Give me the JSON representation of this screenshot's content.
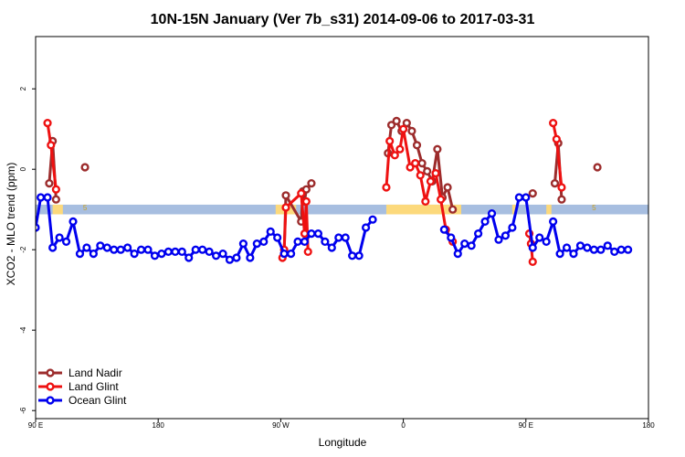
{
  "chart_data": {
    "type": "line",
    "title": "10N-15N January (Ver 7b_s31)   2014-09-06 to 2017-03-31",
    "xlabel": "Longitude",
    "ylabel": "XCO2 - MLO trend (ppm)",
    "xlim": [
      -90,
      270
    ],
    "ylim": [
      -6.2,
      3.3
    ],
    "x_ticks": [
      {
        "value": -90,
        "label": "90 E"
      },
      {
        "value": -18,
        "label": "180"
      },
      {
        "value": 54,
        "label": "90 W"
      },
      {
        "value": 126,
        "label": "0"
      },
      {
        "value": 198,
        "label": "90 E"
      },
      {
        "value": 270,
        "label": "180"
      }
    ],
    "y_ticks": [
      {
        "value": 2,
        "label": "2"
      },
      {
        "value": 0,
        "label": "0"
      },
      {
        "value": -2,
        "label": "-2"
      },
      {
        "value": -4,
        "label": "-4"
      },
      {
        "value": -6,
        "label": "-6"
      }
    ],
    "band": {
      "y_min": -1.12,
      "y_max": -0.88,
      "color": "#a7bee0"
    },
    "land_highlights": {
      "color": "#fcd97c",
      "ranges": [
        [
          -80,
          -74
        ],
        [
          51,
          63
        ],
        [
          116,
          160
        ],
        [
          190,
          192
        ],
        [
          210,
          213
        ]
      ]
    },
    "legend_position": "bottom-left",
    "series": [
      {
        "name": "Land Nadir",
        "color": "#9c2c2c",
        "points": [
          [
            -82,
            -0.35
          ],
          [
            -80,
            0.7
          ],
          [
            -78,
            -0.75
          ],
          [
            -61,
            0.05
          ],
          [
            56,
            -2.1
          ],
          [
            57,
            -0.65
          ],
          [
            66,
            -1.3
          ],
          [
            67,
            -0.55
          ],
          [
            68,
            -0.8
          ],
          [
            69,
            -0.5
          ],
          [
            72,
            -0.35
          ],
          [
            117,
            0.4
          ],
          [
            119,
            1.1
          ],
          [
            122,
            1.2
          ],
          [
            125,
            0.95
          ],
          [
            128,
            1.15
          ],
          [
            131,
            0.95
          ],
          [
            134,
            0.6
          ],
          [
            137,
            0.15
          ],
          [
            140,
            -0.05
          ],
          [
            143,
            -0.3
          ],
          [
            146,
            0.5
          ],
          [
            149,
            -0.7
          ],
          [
            152,
            -0.45
          ],
          [
            155,
            -1.0
          ],
          [
            202,
            -0.6
          ],
          [
            215,
            -0.35
          ],
          [
            217,
            0.65
          ],
          [
            219,
            -0.75
          ],
          [
            240,
            0.05
          ]
        ]
      },
      {
        "name": "Land Glint",
        "color": "#ee1111",
        "points": [
          [
            -83,
            1.15
          ],
          [
            -81,
            0.6
          ],
          [
            -78,
            -0.5
          ],
          [
            55,
            -2.2
          ],
          [
            56,
            -2.0
          ],
          [
            57,
            -0.95
          ],
          [
            66,
            -0.6
          ],
          [
            68,
            -1.6
          ],
          [
            69,
            -0.8
          ],
          [
            70,
            -2.05
          ],
          [
            116,
            -0.45
          ],
          [
            118,
            0.7
          ],
          [
            121,
            0.35
          ],
          [
            124,
            0.5
          ],
          [
            126,
            1.0
          ],
          [
            130,
            0.05
          ],
          [
            133,
            0.15
          ],
          [
            136,
            -0.15
          ],
          [
            139,
            -0.8
          ],
          [
            142,
            -0.3
          ],
          [
            145,
            -0.1
          ],
          [
            148,
            -0.75
          ],
          [
            151,
            -1.5
          ],
          [
            155,
            -1.8
          ],
          [
            200,
            -1.6
          ],
          [
            201,
            -1.85
          ],
          [
            202,
            -2.3
          ],
          [
            214,
            1.15
          ],
          [
            216,
            0.75
          ],
          [
            219,
            -0.45
          ]
        ]
      },
      {
        "name": "Ocean Glint",
        "color": "#0000ee",
        "points": [
          [
            -90,
            -1.45
          ],
          [
            -87,
            -0.7
          ],
          [
            -83,
            -0.7
          ],
          [
            -80,
            -1.95
          ],
          [
            -76,
            -1.7
          ],
          [
            -72,
            -1.8
          ],
          [
            -68,
            -1.3
          ],
          [
            -64,
            -2.1
          ],
          [
            -60,
            -1.95
          ],
          [
            -56,
            -2.1
          ],
          [
            -52,
            -1.9
          ],
          [
            -48,
            -1.95
          ],
          [
            -44,
            -2.0
          ],
          [
            -40,
            -2.0
          ],
          [
            -36,
            -1.95
          ],
          [
            -32,
            -2.1
          ],
          [
            -28,
            -2.0
          ],
          [
            -24,
            -2.0
          ],
          [
            -20,
            -2.15
          ],
          [
            -16,
            -2.1
          ],
          [
            -12,
            -2.05
          ],
          [
            -8,
            -2.05
          ],
          [
            -4,
            -2.05
          ],
          [
            0,
            -2.2
          ],
          [
            4,
            -2.0
          ],
          [
            8,
            -2.0
          ],
          [
            12,
            -2.05
          ],
          [
            16,
            -2.15
          ],
          [
            20,
            -2.1
          ],
          [
            24,
            -2.25
          ],
          [
            28,
            -2.2
          ],
          [
            32,
            -1.85
          ],
          [
            36,
            -2.2
          ],
          [
            40,
            -1.85
          ],
          [
            44,
            -1.8
          ],
          [
            48,
            -1.55
          ],
          [
            52,
            -1.7
          ],
          [
            56,
            -2.1
          ],
          [
            60,
            -2.1
          ],
          [
            64,
            -1.8
          ],
          [
            68,
            -1.8
          ],
          [
            72,
            -1.6
          ],
          [
            76,
            -1.6
          ],
          [
            80,
            -1.8
          ],
          [
            84,
            -1.95
          ],
          [
            88,
            -1.7
          ],
          [
            92,
            -1.7
          ],
          [
            96,
            -2.15
          ],
          [
            100,
            -2.15
          ],
          [
            104,
            -1.45
          ],
          [
            108,
            -1.25
          ],
          [
            150,
            -1.5
          ],
          [
            154,
            -1.7
          ],
          [
            158,
            -2.1
          ],
          [
            162,
            -1.85
          ],
          [
            166,
            -1.9
          ],
          [
            170,
            -1.6
          ],
          [
            174,
            -1.3
          ],
          [
            178,
            -1.1
          ],
          [
            182,
            -1.75
          ],
          [
            186,
            -1.65
          ],
          [
            190,
            -1.45
          ],
          [
            194,
            -0.7
          ],
          [
            198,
            -0.7
          ],
          [
            202,
            -1.95
          ],
          [
            206,
            -1.7
          ],
          [
            210,
            -1.8
          ],
          [
            214,
            -1.3
          ],
          [
            218,
            -2.1
          ],
          [
            222,
            -1.95
          ],
          [
            226,
            -2.1
          ],
          [
            230,
            -1.9
          ],
          [
            234,
            -1.95
          ],
          [
            238,
            -2.0
          ],
          [
            242,
            -2.0
          ],
          [
            246,
            -1.9
          ],
          [
            250,
            -2.05
          ],
          [
            254,
            -2.0
          ],
          [
            258,
            -2.0
          ]
        ]
      }
    ],
    "annotations": [
      {
        "x": -61,
        "y": -0.95,
        "text": "5"
      },
      {
        "x": 238,
        "y": -0.95,
        "text": "5"
      }
    ]
  }
}
